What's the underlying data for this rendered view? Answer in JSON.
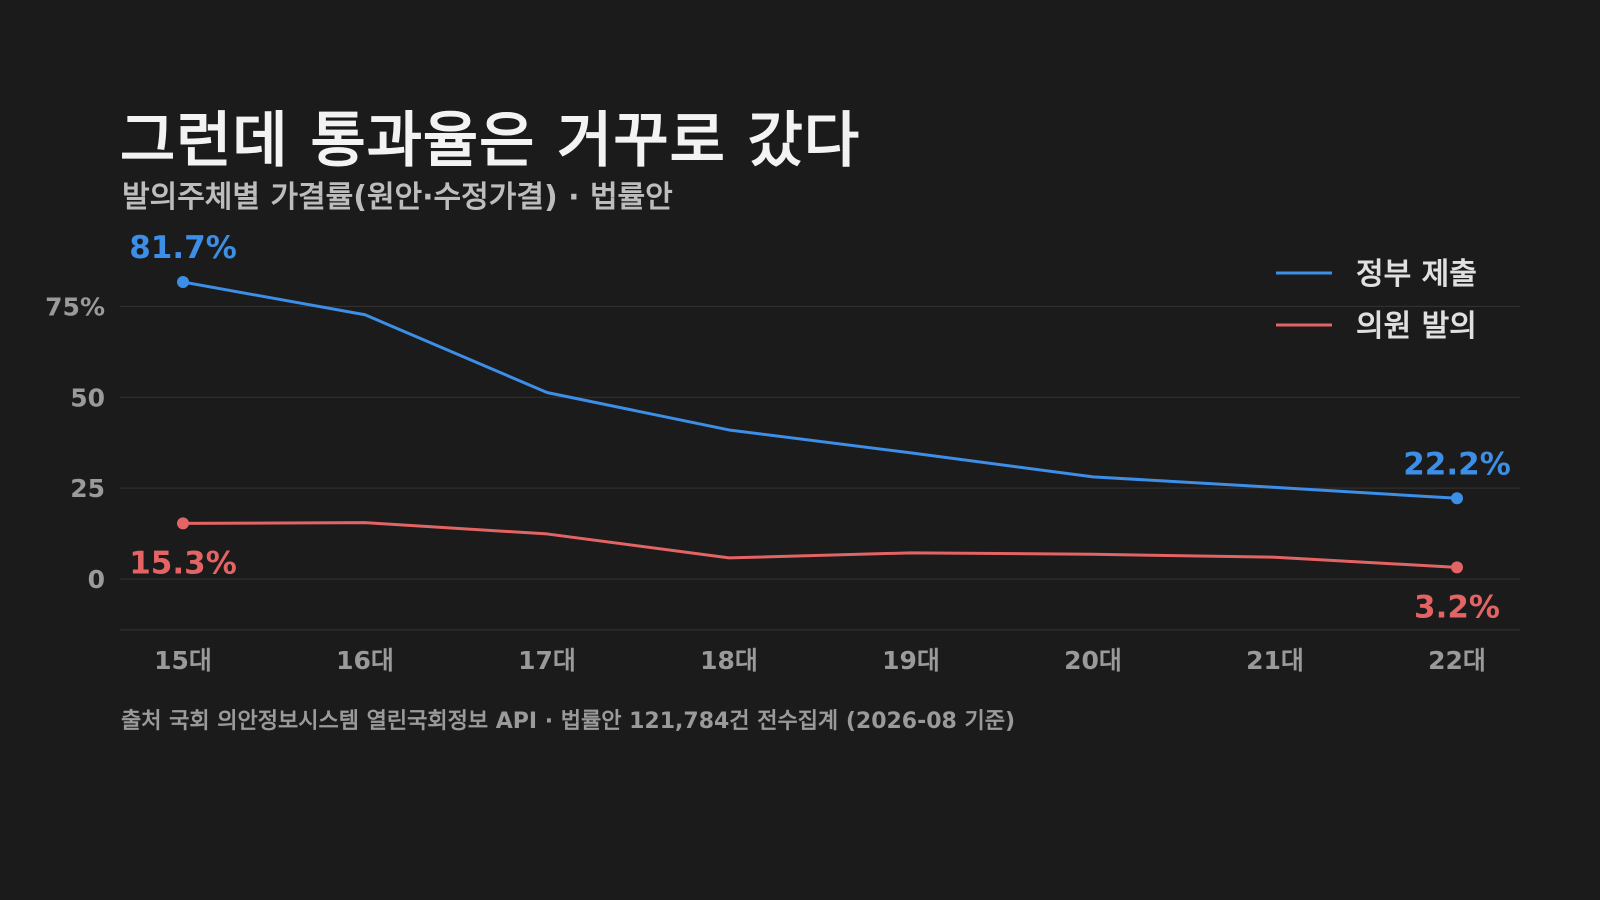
{
  "title": "그런데 통과율은 거꾸로 갔다",
  "subtitle": "발의주체별 가결률(원안·수정가결) · 법률안",
  "source": "출처 국회 의안정보시스템 열린국회정보 API · 법률안 121,784건 전수집계 (2026-08 기준)",
  "colors": {
    "background": "#1b1b1b",
    "government": "#3d8ee6",
    "member": "#e36464",
    "grid": "#333333",
    "axis_text": "#9a9a9a"
  },
  "chart_data": {
    "type": "line",
    "title": "그런데 통과율은 거꾸로 갔다",
    "subtitle": "발의주체별 가결률(원안·수정가결) · 법률안",
    "xlabel": "",
    "ylabel": "",
    "categories": [
      "15대",
      "16대",
      "17대",
      "18대",
      "19대",
      "20대",
      "21대",
      "22대"
    ],
    "ylim": [
      -14,
      95
    ],
    "yticks": [
      0,
      25,
      50,
      75
    ],
    "ytick_labels": [
      "0",
      "25",
      "50",
      "75%"
    ],
    "grid": true,
    "legend_position": "top-right",
    "series": [
      {
        "name": "정부 제출",
        "color": "#3d8ee6",
        "values": [
          81.7,
          72.7,
          51.3,
          41.0,
          34.7,
          28.1,
          25.2,
          22.2
        ],
        "end_labels": {
          "first": "81.7%",
          "last": "22.2%"
        }
      },
      {
        "name": "의원 발의",
        "color": "#e36464",
        "values": [
          15.3,
          15.5,
          12.4,
          5.8,
          7.2,
          6.8,
          6.0,
          3.2
        ],
        "end_labels": {
          "first": "15.3%",
          "last": "3.2%"
        }
      }
    ]
  }
}
